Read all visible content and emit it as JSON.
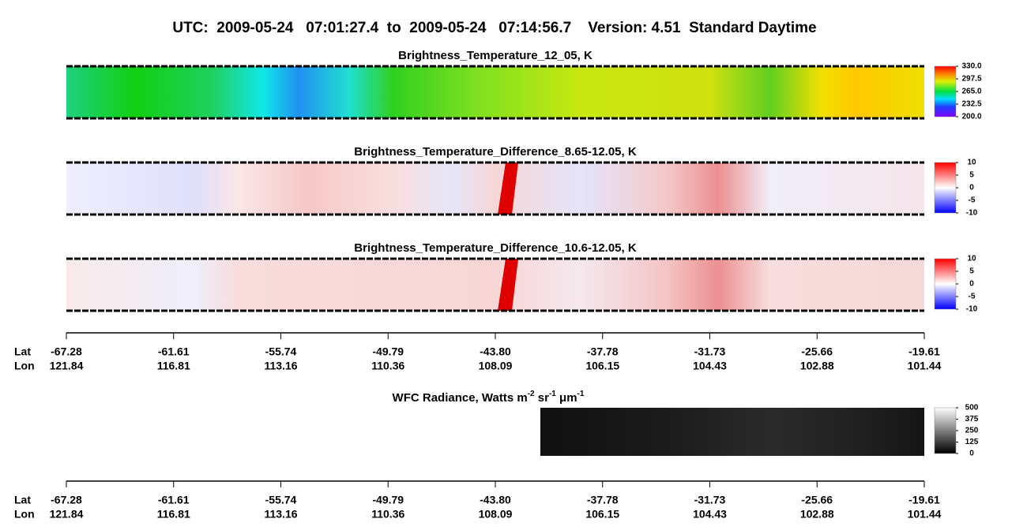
{
  "title": "UTC:  2009-05-24   07:01:27.4  to  2009-05-24   07:14:56.7    Version: 4.51  Standard Daytime",
  "panels": [
    {
      "title": "Brightness_Temperature_12_05, K",
      "colorbar_ticks": [
        {
          "value": 330,
          "label": "330.0"
        },
        {
          "value": 297.5,
          "label": "297.5"
        },
        {
          "value": 265,
          "label": "265.0"
        },
        {
          "value": 232.5,
          "label": "232.5"
        },
        {
          "value": 200,
          "label": "200.0"
        }
      ]
    },
    {
      "title": "Brightness_Temperature_Difference_8.65-12.05, K",
      "colorbar_ticks": [
        10,
        5,
        0,
        -5,
        -10
      ]
    },
    {
      "title": "Brightness_Temperature_Difference_10.6-12.05, K",
      "colorbar_ticks": [
        10,
        5,
        0,
        -5,
        -10
      ]
    }
  ],
  "axes": [
    {
      "lat_title": "Lat",
      "lon_title": "Lon",
      "lat": [
        "-67.28",
        "-61.61",
        "-55.74",
        "-49.79",
        "-43.80",
        "-37.78",
        "-31.73",
        "-25.66",
        "-19.61"
      ],
      "lon": [
        "121.84",
        "116.81",
        "113.16",
        "110.36",
        "108.09",
        "106.15",
        "104.43",
        "102.88",
        "101.44"
      ]
    },
    {
      "lat_title": "Lat",
      "lon_title": "Lon",
      "lat": [
        "-67.28",
        "-61.61",
        "-55.74",
        "-49.79",
        "-43.80",
        "-37.78",
        "-31.73",
        "-25.66",
        "-19.61"
      ],
      "lon": [
        "121.84",
        "116.81",
        "113.16",
        "110.36",
        "108.09",
        "106.15",
        "104.43",
        "102.88",
        "101.44"
      ]
    }
  ],
  "wfc": {
    "title_parts": [
      "WFC Radiance, Watts m",
      "-2",
      " sr",
      "-1",
      " μm",
      "-1"
    ],
    "colorbar_ticks": [
      500,
      375,
      250,
      125,
      0
    ]
  }
}
